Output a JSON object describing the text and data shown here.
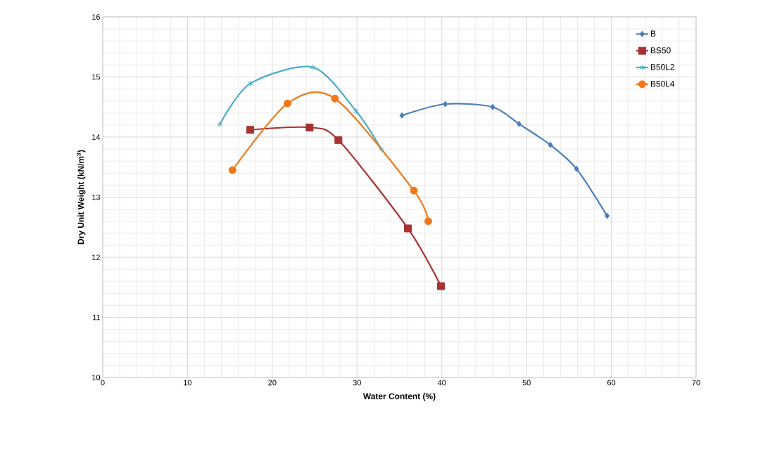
{
  "chart_data": {
    "type": "line",
    "xlabel": "Water Content  (%)",
    "ylabel": "Dry Unit Weight (kN/m$^{3}$)",
    "xlim": [
      0,
      70
    ],
    "xticks": [
      0,
      10,
      20,
      30,
      40,
      50,
      60,
      70
    ],
    "ylim": [
      10,
      16
    ],
    "yticks": [
      10,
      11,
      12,
      13,
      14,
      15,
      16
    ],
    "grid": true,
    "legend": "top right",
    "series": [
      {
        "name": "B",
        "color": "#4a7ebb",
        "marker": "diamond",
        "x": [
          35.3,
          40.4,
          46.0,
          49.1,
          52.8,
          55.9,
          59.5
        ],
        "values": [
          14.36,
          14.55,
          14.5,
          14.22,
          13.87,
          13.47,
          12.69
        ]
      },
      {
        "name": "BS50",
        "color": "#a83232",
        "marker": "square",
        "x": [
          17.4,
          24.4,
          27.8,
          36.0,
          39.9
        ],
        "values": [
          14.12,
          14.16,
          13.95,
          12.48,
          11.52
        ]
      },
      {
        "name": "B50L2",
        "color": "#4bacc6",
        "marker": "cross",
        "x": [
          13.8,
          17.4,
          24.8,
          29.9,
          32.9
        ],
        "values": [
          14.21,
          14.89,
          15.16,
          14.43,
          13.79
        ]
      },
      {
        "name": "B50L4",
        "color": "#f07818",
        "marker": "circle",
        "x": [
          15.3,
          21.8,
          27.4,
          36.7,
          38.4
        ],
        "values": [
          13.45,
          14.56,
          14.64,
          13.11,
          12.6
        ]
      }
    ]
  }
}
